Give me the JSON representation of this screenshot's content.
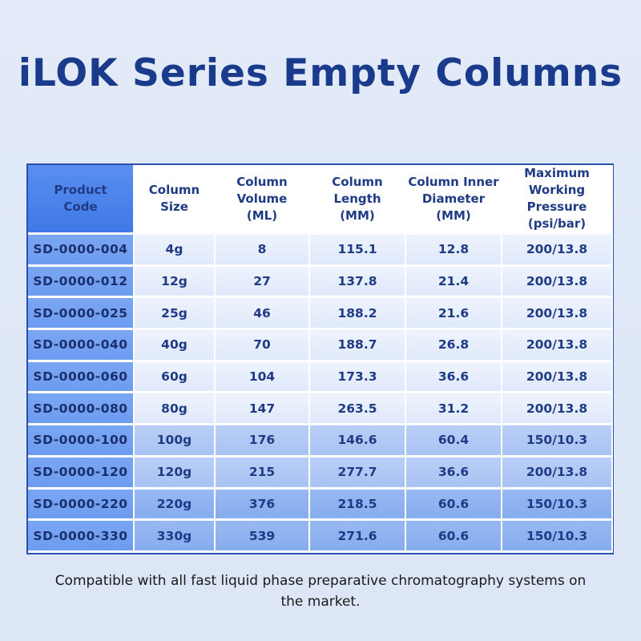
{
  "title": "iLOK Series Empty Columns",
  "table": {
    "headers": [
      [
        "Product",
        "Code"
      ],
      [
        "Column",
        "Size"
      ],
      [
        "Column",
        "Volume",
        "(ML)"
      ],
      [
        "Column",
        "Length",
        "(MM)"
      ],
      [
        "Column Inner",
        "Diameter",
        "(MM)"
      ],
      [
        "Maximum",
        "Working Pressure",
        "(psi/bar)"
      ]
    ],
    "rows": [
      [
        "SD-0000-004",
        "4g",
        "8",
        "115.1",
        "12.8",
        "200/13.8"
      ],
      [
        "SD-0000-012",
        "12g",
        "27",
        "137.8",
        "21.4",
        "200/13.8"
      ],
      [
        "SD-0000-025",
        "25g",
        "46",
        "188.2",
        "21.6",
        "200/13.8"
      ],
      [
        "SD-0000-040",
        "40g",
        "70",
        "188.7",
        "26.8",
        "200/13.8"
      ],
      [
        "SD-0000-060",
        "60g",
        "104",
        "173.3",
        "36.6",
        "200/13.8"
      ],
      [
        "SD-0000-080",
        "80g",
        "147",
        "263.5",
        "31.2",
        "200/13.8"
      ],
      [
        "SD-0000-100",
        "100g",
        "176",
        "146.6",
        "60.4",
        "150/10.3"
      ],
      [
        "SD-0000-120",
        "120g",
        "215",
        "277.7",
        "36.6",
        "200/13.8"
      ],
      [
        "SD-0000-220",
        "220g",
        "376",
        "218.5",
        "60.6",
        "150/10.3"
      ],
      [
        "SD-0000-330",
        "330g",
        "539",
        "271.6",
        "60.6",
        "150/10.3"
      ]
    ]
  },
  "footer": {
    "line1": "Compatible with all fast liquid phase preparative chromatography systems on",
    "line2": "the market."
  }
}
